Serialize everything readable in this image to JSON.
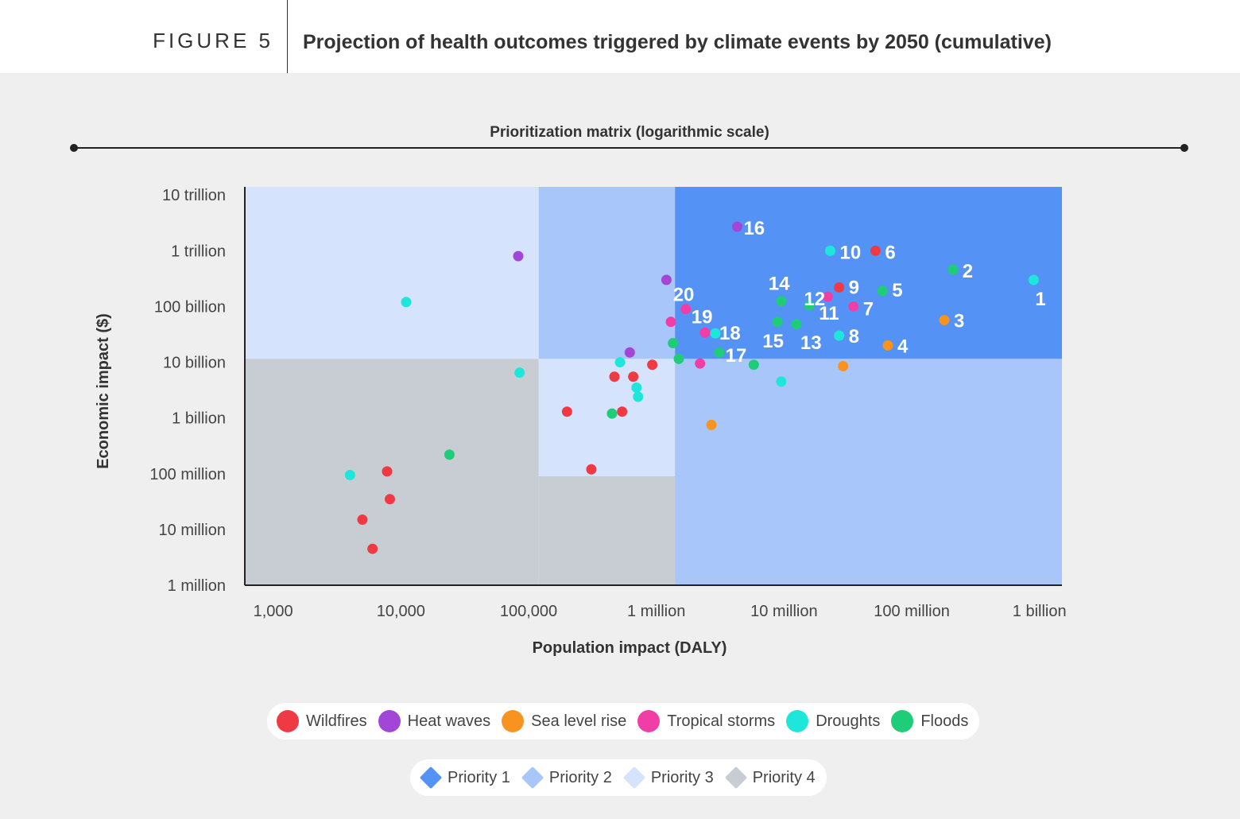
{
  "header": {
    "figure_label": "FIGURE 5",
    "title": "Projection of health outcomes triggered by climate events by 2050 (cumulative)"
  },
  "chart_data": {
    "type": "scatter",
    "title": "Prioritization matrix (logarithmic scale)",
    "xlabel": "Population impact (DALY)",
    "ylabel": "Economic impact ($)",
    "xscale": "log",
    "yscale": "log",
    "xlim": [
      600,
      1500000000
    ],
    "ylim": [
      1000000,
      14000000000000
    ],
    "x_ticks": [
      {
        "value": 1000,
        "label": "1,000"
      },
      {
        "value": 10000,
        "label": "10,000"
      },
      {
        "value": 100000,
        "label": "100,000"
      },
      {
        "value": 1000000,
        "label": "1 million"
      },
      {
        "value": 10000000,
        "label": "10 million"
      },
      {
        "value": 100000000,
        "label": "100 million"
      },
      {
        "value": 1000000000,
        "label": "1 billion"
      }
    ],
    "y_ticks": [
      {
        "value": 10000000000000,
        "label": "10 trillion"
      },
      {
        "value": 1000000000000,
        "label": "1 trillion"
      },
      {
        "value": 100000000000,
        "label": "100 billion"
      },
      {
        "value": 10000000000,
        "label": "10 billion"
      },
      {
        "value": 1000000000,
        "label": "1 billion"
      },
      {
        "value": 100000000,
        "label": "100 million"
      },
      {
        "value": 10000000,
        "label": "10 million"
      },
      {
        "value": 1000000,
        "label": "1 million"
      }
    ],
    "regions": [
      {
        "priority": "Priority 3",
        "x": [
          600,
          120000
        ],
        "y": [
          11500000000,
          14000000000000
        ]
      },
      {
        "priority": "Priority 2",
        "x": [
          120000,
          1400000
        ],
        "y": [
          11500000000,
          14000000000000
        ]
      },
      {
        "priority": "Priority 1",
        "x": [
          1400000,
          1500000000
        ],
        "y": [
          11500000000,
          14000000000000
        ]
      },
      {
        "priority": "Priority 4",
        "x": [
          600,
          120000
        ],
        "y": [
          1000000,
          11500000000
        ]
      },
      {
        "priority": "Priority 3",
        "x": [
          120000,
          1400000
        ],
        "y": [
          90000000,
          11500000000
        ]
      },
      {
        "priority": "Priority 4",
        "x": [
          120000,
          1400000
        ],
        "y": [
          1000000,
          90000000
        ]
      },
      {
        "priority": "Priority 2",
        "x": [
          1400000,
          1500000000
        ],
        "y": [
          1000000,
          11500000000
        ]
      }
    ],
    "series": [
      {
        "name": "Wildfires",
        "color": "#ef3a43",
        "points": [
          {
            "x": 5000,
            "y": 15000000
          },
          {
            "x": 6000,
            "y": 4500000
          },
          {
            "x": 7800,
            "y": 110000000
          },
          {
            "x": 8200,
            "y": 35000000
          },
          {
            "x": 200000,
            "y": 1300000000
          },
          {
            "x": 310000,
            "y": 120000000
          },
          {
            "x": 470000,
            "y": 5500000000
          },
          {
            "x": 540000,
            "y": 1300000000
          },
          {
            "x": 660000,
            "y": 5500000000
          },
          {
            "x": 930000,
            "y": 9000000000
          },
          {
            "x": 27000000,
            "y": 220000000000,
            "label": "9"
          },
          {
            "x": 52000000,
            "y": 1000000000000,
            "label": "6"
          }
        ]
      },
      {
        "name": "Heat waves",
        "color": "#a346d8",
        "points": [
          {
            "x": 83000,
            "y": 800000000000
          },
          {
            "x": 620000,
            "y": 15000000000
          },
          {
            "x": 1200000,
            "y": 300000000000
          },
          {
            "x": 4300000,
            "y": 2700000000000,
            "label": "16"
          }
        ]
      },
      {
        "name": "Sea level rise",
        "color": "#f7931e",
        "points": [
          {
            "x": 2700000,
            "y": 750000000
          },
          {
            "x": 29000000,
            "y": 8500000000
          },
          {
            "x": 65000000,
            "y": 20000000000,
            "label": "4"
          },
          {
            "x": 180000000,
            "y": 57000000000,
            "label": "3"
          }
        ]
      },
      {
        "name": "Tropical storms",
        "color": "#f03ea6",
        "points": [
          {
            "x": 1300000,
            "y": 53000000000
          },
          {
            "x": 1700000,
            "y": 90000000000,
            "label": "20"
          },
          {
            "x": 2200000,
            "y": 9500000000
          },
          {
            "x": 2400000,
            "y": 34000000000,
            "label": "19"
          },
          {
            "x": 22000000,
            "y": 150000000000,
            "label": "12"
          },
          {
            "x": 35000000,
            "y": 100000000000,
            "label": "7"
          }
        ]
      },
      {
        "name": "Droughts",
        "color": "#1fe6da",
        "points": [
          {
            "x": 4000,
            "y": 95000000
          },
          {
            "x": 11000,
            "y": 120000000000
          },
          {
            "x": 85000,
            "y": 6500000000
          },
          {
            "x": 520000,
            "y": 10000000000
          },
          {
            "x": 700000,
            "y": 3500000000
          },
          {
            "x": 720000,
            "y": 2400000000
          },
          {
            "x": 2900000,
            "y": 33000000000,
            "label": "18"
          },
          {
            "x": 9500000,
            "y": 4500000000
          },
          {
            "x": 23000000,
            "y": 1000000000000,
            "label": "10"
          },
          {
            "x": 27000000,
            "y": 30000000000,
            "label": "8"
          },
          {
            "x": 900000000,
            "y": 300000000000,
            "label": "1"
          }
        ]
      },
      {
        "name": "Floods",
        "color": "#1fcd79",
        "points": [
          {
            "x": 24000,
            "y": 220000000
          },
          {
            "x": 450000,
            "y": 1200000000
          },
          {
            "x": 1350000,
            "y": 22000000000
          },
          {
            "x": 1500000,
            "y": 11500000000
          },
          {
            "x": 3100000,
            "y": 15000000000,
            "label": "17"
          },
          {
            "x": 5800000,
            "y": 9000000000
          },
          {
            "x": 8900000,
            "y": 53000000000,
            "label": "15"
          },
          {
            "x": 9500000,
            "y": 125000000000,
            "label": "14"
          },
          {
            "x": 12500000,
            "y": 48000000000,
            "label": "13"
          },
          {
            "x": 15800000,
            "y": 105000000000,
            "label": "11"
          },
          {
            "x": 59000000,
            "y": 190000000000,
            "label": "5"
          },
          {
            "x": 210000000,
            "y": 460000000000,
            "label": "2"
          }
        ]
      }
    ],
    "legend": {
      "events": [
        {
          "name": "Wildfires",
          "color": "#ef3a43"
        },
        {
          "name": "Heat waves",
          "color": "#a346d8"
        },
        {
          "name": "Sea level rise",
          "color": "#f7931e"
        },
        {
          "name": "Tropical storms",
          "color": "#f03ea6"
        },
        {
          "name": "Droughts",
          "color": "#1fe6da"
        },
        {
          "name": "Floods",
          "color": "#1fcd79"
        }
      ],
      "priorities": [
        {
          "name": "Priority 1",
          "color": "#5592f5"
        },
        {
          "name": "Priority 2",
          "color": "#a8c6fa"
        },
        {
          "name": "Priority 3",
          "color": "#d5e3fc"
        },
        {
          "name": "Priority 4",
          "color": "#c8cdd3"
        }
      ]
    }
  }
}
